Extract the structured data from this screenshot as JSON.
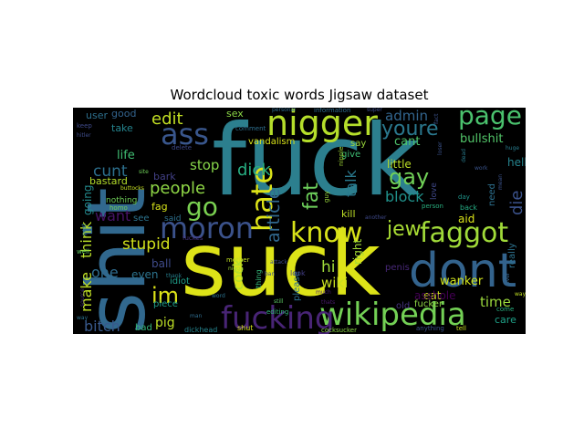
{
  "chart_data": {
    "type": "wordcloud",
    "title": "Wordcloud toxic words Jigsaw dataset",
    "background": "#000000",
    "colormap": "viridis",
    "grid": false,
    "legend": "none",
    "words": [
      {
        "text": "fuck",
        "weight": 100,
        "color": "#2c7f8e",
        "rotate": false
      },
      {
        "text": "suck",
        "weight": 72,
        "color": "#dde318",
        "rotate": false
      },
      {
        "text": "shit",
        "weight": 66,
        "color": "#31688e",
        "rotate": true
      },
      {
        "text": "dont",
        "weight": 44,
        "color": "#33638d",
        "rotate": false
      },
      {
        "text": "nigger",
        "weight": 36,
        "color": "#b5de2b",
        "rotate": false
      },
      {
        "text": "wikipedia",
        "weight": 28,
        "color": "#73d055",
        "rotate": false
      },
      {
        "text": "fucking",
        "weight": 28,
        "color": "#482475",
        "rotate": false
      },
      {
        "text": "hate",
        "weight": 27,
        "color": "#dde318",
        "rotate": true
      },
      {
        "text": "ass",
        "weight": 27,
        "color": "#39568c",
        "rotate": false
      },
      {
        "text": "moron",
        "weight": 27,
        "color": "#3b528b",
        "rotate": false
      },
      {
        "text": "faggot",
        "weight": 26,
        "color": "#a0da39",
        "rotate": false
      },
      {
        "text": "know",
        "weight": 25,
        "color": "#d8e219",
        "rotate": false
      },
      {
        "text": "page",
        "weight": 24,
        "color": "#4ac16d",
        "rotate": false
      },
      {
        "text": "go",
        "weight": 23,
        "color": "#7ad151",
        "rotate": false
      },
      {
        "text": "gay",
        "weight": 20,
        "color": "#70cf57",
        "rotate": false
      },
      {
        "text": "im",
        "weight": 20,
        "color": "#dde318",
        "rotate": false
      },
      {
        "text": "youre",
        "weight": 18,
        "color": "#2a788e",
        "rotate": false
      },
      {
        "text": "jew",
        "weight": 18,
        "color": "#a8db34",
        "rotate": false
      },
      {
        "text": "fat",
        "weight": 18,
        "color": "#6ccd5a",
        "rotate": true
      },
      {
        "text": "dick",
        "weight": 16,
        "color": "#27ad81",
        "rotate": false
      },
      {
        "text": "edit",
        "weight": 16,
        "color": "#c2df23",
        "rotate": false
      },
      {
        "text": "article",
        "weight": 16,
        "color": "#31688e",
        "rotate": true
      },
      {
        "text": "people",
        "weight": 15,
        "color": "#8ed645",
        "rotate": false
      },
      {
        "text": "die",
        "weight": 15,
        "color": "#3b528b",
        "rotate": true
      },
      {
        "text": "stupid",
        "weight": 14,
        "color": "#d2e21b",
        "rotate": false
      },
      {
        "text": "cunt",
        "weight": 14,
        "color": "#2d708e",
        "rotate": false
      },
      {
        "text": "hi",
        "weight": 14,
        "color": "#9fda3a",
        "rotate": false
      },
      {
        "text": "bitch",
        "weight": 14,
        "color": "#38598c",
        "rotate": false
      },
      {
        "text": "want",
        "weight": 13,
        "color": "#471365",
        "rotate": false
      },
      {
        "text": "one",
        "weight": 13,
        "color": "#2f6c8e",
        "rotate": false
      },
      {
        "text": "talk",
        "weight": 13,
        "color": "#29798e",
        "rotate": true
      },
      {
        "text": "block",
        "weight": 13,
        "color": "#20928c",
        "rotate": false
      },
      {
        "text": "stop",
        "weight": 12,
        "color": "#86d549",
        "rotate": false
      },
      {
        "text": "think",
        "weight": 12,
        "color": "#b8de29",
        "rotate": true
      },
      {
        "text": "make",
        "weight": 12,
        "color": "#c0df25",
        "rotate": true
      },
      {
        "text": "admin",
        "weight": 12,
        "color": "#32658e",
        "rotate": false
      },
      {
        "text": "cock",
        "weight": 12,
        "color": "#b0dd2f",
        "rotate": true
      },
      {
        "text": "wiki",
        "weight": 12,
        "color": "#c8e020",
        "rotate": false
      },
      {
        "text": "time",
        "weight": 12,
        "color": "#9bd93c",
        "rotate": false
      },
      {
        "text": "bullshit",
        "weight": 11,
        "color": "#52c569",
        "rotate": false
      },
      {
        "text": "pig",
        "weight": 11,
        "color": "#bddf26",
        "rotate": false
      },
      {
        "text": "wanker",
        "weight": 10,
        "color": "#cfe11c",
        "rotate": false
      },
      {
        "text": "cant",
        "weight": 10,
        "color": "#4ec36b",
        "rotate": false
      },
      {
        "text": "life",
        "weight": 10,
        "color": "#40bd72",
        "rotate": false
      },
      {
        "text": "ball",
        "weight": 10,
        "color": "#3e4a89",
        "rotate": false
      },
      {
        "text": "even",
        "weight": 10,
        "color": "#2c738e",
        "rotate": false
      },
      {
        "text": "little",
        "weight": 10,
        "color": "#bddf26",
        "rotate": false
      },
      {
        "text": "eat",
        "weight": 10,
        "color": "#d0e11c",
        "rotate": false
      },
      {
        "text": "going",
        "weight": 10,
        "color": "#238a8d",
        "rotate": true
      },
      {
        "text": "hell",
        "weight": 10,
        "color": "#25848e",
        "rotate": false
      },
      {
        "text": "aid",
        "weight": 10,
        "color": "#dae319",
        "rotate": false
      },
      {
        "text": "kill",
        "weight": 9,
        "color": "#bddf26",
        "rotate": false
      },
      {
        "text": "right",
        "weight": 9,
        "color": "#a2da37",
        "rotate": true
      },
      {
        "text": "asshole",
        "weight": 9,
        "color": "#440154",
        "rotate": false
      },
      {
        "text": "care",
        "weight": 9,
        "color": "#1fa188",
        "rotate": false
      },
      {
        "text": "bastard",
        "weight": 9,
        "color": "#b5de2b",
        "rotate": false
      },
      {
        "text": "fag",
        "weight": 9,
        "color": "#d5e21a",
        "rotate": false
      },
      {
        "text": "bark",
        "weight": 9,
        "color": "#424086",
        "rotate": false
      },
      {
        "text": "sex",
        "weight": 9,
        "color": "#8bd646",
        "rotate": false
      },
      {
        "text": "good",
        "weight": 8,
        "color": "#33638d",
        "rotate": false
      },
      {
        "text": "user",
        "weight": 8,
        "color": "#2d708e",
        "rotate": false
      },
      {
        "text": "take",
        "weight": 8,
        "color": "#25848e",
        "rotate": false
      },
      {
        "text": "say",
        "weight": 8,
        "color": "#9bd93c",
        "rotate": false
      },
      {
        "text": "give",
        "weight": 8,
        "color": "#3dbc74",
        "rotate": false
      },
      {
        "text": "vandalism",
        "weight": 8,
        "color": "#dae319",
        "rotate": false
      },
      {
        "text": "piece",
        "weight": 8,
        "color": "#1e9c89",
        "rotate": false
      },
      {
        "text": "idiot",
        "weight": 7,
        "color": "#1f9e89",
        "rotate": false
      },
      {
        "text": "see",
        "weight": 7,
        "color": "#2c738e",
        "rotate": false
      },
      {
        "text": "said",
        "weight": 6,
        "color": "#2d708e",
        "rotate": false
      },
      {
        "text": "bad",
        "weight": 7,
        "color": "#35b779",
        "rotate": false
      },
      {
        "text": "penis",
        "weight": 7,
        "color": "#482878",
        "rotate": false
      },
      {
        "text": "fucker",
        "weight": 7,
        "color": "#8ed645",
        "rotate": false
      },
      {
        "text": "old",
        "weight": 7,
        "color": "#46327e",
        "rotate": false
      },
      {
        "text": "need",
        "weight": 7,
        "color": "#2d708e",
        "rotate": true
      },
      {
        "text": "love",
        "weight": 6,
        "color": "#3f4889",
        "rotate": true
      },
      {
        "text": "really",
        "weight": 6,
        "color": "#2c728e",
        "rotate": true
      },
      {
        "text": "please",
        "weight": 6,
        "color": "#2d708e",
        "rotate": true
      },
      {
        "text": "nothing",
        "weight": 6,
        "color": "#6ece58",
        "rotate": false
      },
      {
        "text": "dickhead",
        "weight": 5,
        "color": "#25848e",
        "rotate": false
      },
      {
        "text": "shut",
        "weight": 5,
        "color": "#d5e21a",
        "rotate": false
      },
      {
        "text": "cocksucker",
        "weight": 5,
        "color": "#8bd646",
        "rotate": false
      },
      {
        "text": "editing",
        "weight": 5,
        "color": "#32b67a",
        "rotate": false
      },
      {
        "text": "anything",
        "weight": 4,
        "color": "#3b528b",
        "rotate": false
      },
      {
        "text": "tell",
        "weight": 5,
        "color": "#c8e020",
        "rotate": false
      },
      {
        "text": "come",
        "weight": 4,
        "color": "#29af7f",
        "rotate": false
      },
      {
        "text": "fuckes",
        "weight": 4,
        "color": "#46337f",
        "rotate": false
      },
      {
        "text": "thing",
        "weight": 5,
        "color": "#35b779",
        "rotate": true
      },
      {
        "text": "look",
        "weight": 5,
        "color": "#433e85",
        "rotate": false
      },
      {
        "text": "delete",
        "weight": 4,
        "color": "#3e4989",
        "rotate": false
      },
      {
        "text": "comment",
        "weight": 4,
        "color": "#2e6f8e",
        "rotate": false
      },
      {
        "text": "information",
        "weight": 4,
        "color": "#2f6c8e",
        "rotate": false
      },
      {
        "text": "mother",
        "weight": 4,
        "color": "#c2df23",
        "rotate": false
      },
      {
        "text": "nipple",
        "weight": 4,
        "color": "#a2da37",
        "rotate": true
      },
      {
        "text": "back",
        "weight": 4,
        "color": "#25ab82",
        "rotate": false
      },
      {
        "text": "homo",
        "weight": 4,
        "color": "#70cf57",
        "rotate": false
      },
      {
        "text": "keep",
        "weight": 4,
        "color": "#3e4989",
        "rotate": false
      },
      {
        "text": "well",
        "weight": 4,
        "color": "#5ec962",
        "rotate": false
      },
      {
        "text": "person",
        "weight": 4,
        "color": "#29af7f",
        "rotate": false
      },
      {
        "text": "thats",
        "weight": 4,
        "color": "#48196b",
        "rotate": false
      },
      {
        "text": "day",
        "weight": 4,
        "color": "#1f958b",
        "rotate": false
      },
      {
        "text": "ban",
        "weight": 4,
        "color": "#3c4f8a",
        "rotate": false
      },
      {
        "text": "still",
        "weight": 4,
        "color": "#5cc863",
        "rotate": false
      },
      {
        "text": "guy",
        "weight": 4,
        "color": "#9bd93c",
        "rotate": true
      },
      {
        "text": "huge",
        "weight": 3,
        "color": "#287d8e",
        "rotate": false
      },
      {
        "text": "loser",
        "weight": 3,
        "color": "#3b528b",
        "rotate": true
      },
      {
        "text": "super",
        "weight": 3,
        "color": "#3d4d8a",
        "rotate": false
      },
      {
        "text": "thank",
        "weight": 3,
        "color": "#277f8e",
        "rotate": false
      },
      {
        "text": "hitler",
        "weight": 3,
        "color": "#3e4c8a",
        "rotate": false
      },
      {
        "text": "source",
        "weight": 3,
        "color": "#46317e",
        "rotate": true
      },
      {
        "text": "much",
        "weight": 3,
        "color": "#481f70",
        "rotate": false
      },
      {
        "text": "attack",
        "weight": 3,
        "color": "#3d4d8a",
        "rotate": false
      },
      {
        "text": "buttocks",
        "weight": 3,
        "color": "#c8e020",
        "rotate": false
      },
      {
        "text": "fact",
        "weight": 3,
        "color": "#3b528b",
        "rotate": true
      },
      {
        "text": "personal",
        "weight": 3,
        "color": "#2f6b8e",
        "rotate": false
      },
      {
        "text": "word",
        "weight": 3,
        "color": "#2c728e",
        "rotate": false
      },
      {
        "text": "ever",
        "weight": 3,
        "color": "#33638d",
        "rotate": true
      },
      {
        "text": "post",
        "weight": 3,
        "color": "#2c718e",
        "rotate": true
      },
      {
        "text": "mean",
        "weight": 3,
        "color": "#3b528b",
        "rotate": true
      },
      {
        "text": "dead",
        "weight": 3,
        "color": "#287c8e",
        "rotate": true
      },
      {
        "text": "site",
        "weight": 3,
        "color": "#6ece58",
        "rotate": false
      },
      {
        "text": "way",
        "weight": 3,
        "color": "#2c728e",
        "rotate": false
      },
      {
        "text": "way",
        "weight": 3,
        "color": "#c2df23",
        "rotate": false
      },
      {
        "text": "another",
        "weight": 3,
        "color": "#3e4989",
        "rotate": false
      },
      {
        "text": "nigga",
        "weight": 3,
        "color": "#a2da37",
        "rotate": false
      },
      {
        "text": "man",
        "weight": 3,
        "color": "#2f6c8e",
        "rotate": false
      },
      {
        "text": "work",
        "weight": 3,
        "color": "#3a548c",
        "rotate": false
      }
    ]
  }
}
